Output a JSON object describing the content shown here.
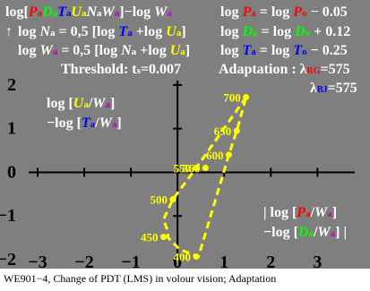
{
  "colors": {
    "background": "#7f7f7f",
    "text": "#ffffff",
    "red": "#ff0000",
    "green": "#00ff00",
    "blue": "#0000ff",
    "yellow_blue": "#ffff00",
    "violet": "#c000c0",
    "curve": "#ffff00"
  },
  "header": {
    "formula1": {
      "prefix": "log[",
      "P": "P",
      "a1": "a",
      "D": "D",
      "a2": "a",
      "T": "T",
      "a3": "a",
      "U": "U",
      "a4": "a",
      "N": "N",
      "a5": "a",
      "W": "W",
      "a6": "a",
      "mid": "]−log ",
      "W2": "W",
      "a7": "a"
    },
    "formula2": {
      "prefix": "log ",
      "N": "N",
      "a1": "a",
      "mid": " = 0,5 [log ",
      "T": "T",
      "a2": "a",
      "plus": " +log ",
      "U": "U",
      "a3": "a",
      "end": "]"
    },
    "formula3": {
      "prefix": "log ",
      "W": "W",
      "a1": "a",
      "mid": " = 0,5 [log ",
      "N": "N",
      "a2": "a",
      "plus": " +log ",
      "U": "U",
      "a3": "a",
      "end": "]"
    },
    "threshold": "Threshold: t",
    "threshold_sub": "s",
    "threshold_value": "=0.007",
    "right1": {
      "prefix": "log ",
      "P": "P",
      "a": "a",
      "mid": " = log ",
      "P2": "P",
      "o": "o",
      "end": " − 0.05"
    },
    "right2": {
      "prefix": "log ",
      "D": "D",
      "a": "a",
      "mid": " = log ",
      "D2": "D",
      "o": "o",
      "end": " + 0.12"
    },
    "right3": {
      "prefix": "log ",
      "T": "T",
      "a": "a",
      "mid": " = log ",
      "T2": "T",
      "o": "o",
      "end": " − 0.25"
    },
    "adaptation": "Adaptation : λ",
    "adaptation_sub": "RG",
    "adaptation_value": "=575",
    "lambda": "λ",
    "lambda_sub": "BJ",
    "lambda_value": "=575"
  },
  "chart_data": {
    "type": "line",
    "xlim": [
      -3,
      3.8
    ],
    "ylim": [
      -2,
      2.1
    ],
    "x_ticks": [
      -3,
      -2,
      -1,
      0,
      1,
      2,
      3
    ],
    "y_ticks": [
      -2,
      -1,
      0,
      1,
      2
    ],
    "x_tick_labels": [
      "−3",
      "−2",
      "−1",
      "0",
      "1",
      "2",
      "3"
    ],
    "y_tick_labels": [
      "−2",
      "−1",
      "0",
      "1",
      "2"
    ],
    "y_axis_label": {
      "line1": {
        "prefix": "log [",
        "U": "U",
        "a1": "a",
        "slash": "/",
        "W": "W",
        "a2": "a",
        "end": "]"
      },
      "line2": {
        "prefix": "−log [",
        "T": "T",
        "a1": "a",
        "slash": "/",
        "W": "W",
        "a2": "a",
        "end": "]"
      }
    },
    "x_axis_label": {
      "line1": {
        "prefix": "| log [",
        "P": "P",
        "a1": "a",
        "slash": "/",
        "W": "W",
        "a2": "a",
        "end": "]"
      },
      "line2": {
        "prefix": "−log [",
        "D": "D",
        "a1": "a",
        "slash": "/",
        "W": "W",
        "a2": "a",
        "end": "] |"
      }
    },
    "series": [
      {
        "line_style": "dashed",
        "x": [
          1.47,
          0.4,
          -0.1,
          -0.3,
          -0.22,
          -0.2,
          0.05,
          0.45,
          1.1,
          1.27,
          1.47
        ],
        "y": [
          1.72,
          0.1,
          -0.62,
          -1.08,
          -1.32,
          -1.5,
          -1.77,
          -1.93,
          0.4,
          0.95,
          1.72
        ],
        "points": [
          {
            "x": 1.47,
            "y": 1.72,
            "label": "700"
          },
          {
            "x": 1.27,
            "y": 0.95,
            "label": "650"
          },
          {
            "x": 1.1,
            "y": 0.4,
            "label": "600"
          },
          {
            "x": 0.4,
            "y": 0.1,
            "label": "550"
          },
          {
            "x": 0.6,
            "y": 0.1,
            "label": "560"
          },
          {
            "x": -0.1,
            "y": -0.62,
            "label": "500"
          },
          {
            "x": -0.3,
            "y": -1.48,
            "label": "450"
          },
          {
            "x": 0.4,
            "y": -1.93,
            "label": "400"
          }
        ]
      }
    ]
  },
  "caption": "WE901−4, Change of PDT (LMS) in volour vision; Adaptation"
}
